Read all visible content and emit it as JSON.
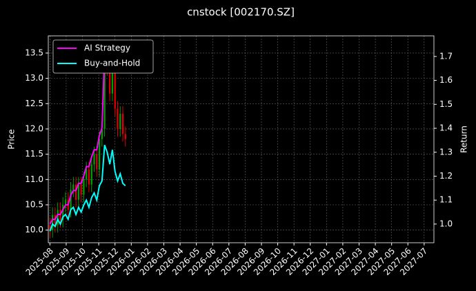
{
  "chart_data": {
    "type": "candlestick_returns",
    "title": "cnstock [002170.SZ]",
    "y_label": "Price",
    "y2_label": "Return",
    "grid": true,
    "legend_position": "upper-left",
    "up_color": "#00a000",
    "down_color": "#e00000",
    "xlim": [
      -0.1,
      23.6
    ],
    "xticks": [
      {
        "value": 0,
        "label": "2025-08"
      },
      {
        "value": 1,
        "label": "2025-09"
      },
      {
        "value": 2,
        "label": "2025-10"
      },
      {
        "value": 3,
        "label": "2025-11"
      },
      {
        "value": 4,
        "label": "2025-12"
      },
      {
        "value": 5,
        "label": "2026-01"
      },
      {
        "value": 6,
        "label": "2026-02"
      },
      {
        "value": 7,
        "label": "2026-03"
      },
      {
        "value": 8,
        "label": "2026-04"
      },
      {
        "value": 9,
        "label": "2026-05"
      },
      {
        "value": 10,
        "label": "2026-06"
      },
      {
        "value": 11,
        "label": "2026-07"
      },
      {
        "value": 12,
        "label": "2026-08"
      },
      {
        "value": 13,
        "label": "2026-09"
      },
      {
        "value": 14,
        "label": "2026-10"
      },
      {
        "value": 15,
        "label": "2026-11"
      },
      {
        "value": 16,
        "label": "2026-12"
      },
      {
        "value": 17,
        "label": "2027-01"
      },
      {
        "value": 18,
        "label": "2027-02"
      },
      {
        "value": 19,
        "label": "2027-03"
      },
      {
        "value": 20,
        "label": "2027-04"
      },
      {
        "value": 21,
        "label": "2027-05"
      },
      {
        "value": 22,
        "label": "2027-06"
      },
      {
        "value": 23,
        "label": "2027-07"
      }
    ],
    "ylim": [
      9.75,
      13.84
    ],
    "yticks": [
      {
        "value": 10,
        "label": "10.0"
      },
      10.5,
      {
        "value": 11,
        "label": "11.0"
      },
      11.5,
      {
        "value": 12,
        "label": "12.0"
      },
      12.5,
      {
        "value": 13,
        "label": "13.0"
      },
      13.5
    ],
    "y2lim": [
      0.922,
      1.786
    ],
    "y2ticks": [
      {
        "value": 1,
        "label": "1.0"
      },
      1.1,
      1.2,
      1.3,
      1.4,
      1.5,
      1.6,
      1.7
    ],
    "x": [
      0,
      0.16,
      0.32,
      0.48,
      0.64,
      0.8,
      0.96,
      1.12,
      1.28,
      1.44,
      1.6,
      1.76,
      1.92,
      2.08,
      2.24,
      2.4,
      2.56,
      2.72,
      2.88,
      3.04,
      3.2,
      3.36,
      3.52,
      3.68,
      3.84,
      4.0,
      4.16,
      4.32,
      4.48,
      4.64
    ],
    "open": [
      10.1,
      10.0,
      10.3,
      10.1,
      10.4,
      10.2,
      10.5,
      10.6,
      10.4,
      10.8,
      10.9,
      10.6,
      10.9,
      10.7,
      11.0,
      11.2,
      10.9,
      11.3,
      11.5,
      11.2,
      11.8,
      12.0,
      13.5,
      13.2,
      12.7,
      13.3,
      12.4,
      12.0,
      12.3,
      11.9
    ],
    "high": [
      10.25,
      10.45,
      10.45,
      10.55,
      10.55,
      10.65,
      10.75,
      10.75,
      10.95,
      11.05,
      11.05,
      11.05,
      11.05,
      11.15,
      11.35,
      11.35,
      11.45,
      11.65,
      11.65,
      11.95,
      12.15,
      13.65,
      13.65,
      13.35,
      13.45,
      13.45,
      12.55,
      12.45,
      12.45,
      12.05
    ],
    "low": [
      9.85,
      9.85,
      9.95,
      9.95,
      10.05,
      10.05,
      10.35,
      10.25,
      10.25,
      10.65,
      10.45,
      10.45,
      10.55,
      10.55,
      10.85,
      10.75,
      10.75,
      11.15,
      11.05,
      11.05,
      11.65,
      11.85,
      13.05,
      12.55,
      12.55,
      12.25,
      11.85,
      11.85,
      11.75,
      11.65
    ],
    "close": [
      10.0,
      10.3,
      10.1,
      10.4,
      10.2,
      10.5,
      10.6,
      10.4,
      10.8,
      10.9,
      10.6,
      10.9,
      10.7,
      11.0,
      11.2,
      10.9,
      11.3,
      11.5,
      11.2,
      11.8,
      12.0,
      13.5,
      13.2,
      12.7,
      13.3,
      12.4,
      12.0,
      12.3,
      11.9,
      11.8
    ],
    "series": [
      {
        "name": "AI Strategy",
        "color": "#ff00ff",
        "axis": "y2",
        "values": [
          1.0,
          1.02,
          1.02,
          1.04,
          1.04,
          1.06,
          1.08,
          1.08,
          1.12,
          1.14,
          1.14,
          1.17,
          1.17,
          1.2,
          1.24,
          1.24,
          1.28,
          1.31,
          1.31,
          1.37,
          1.4,
          1.72,
          1.72,
          1.72,
          1.72,
          1.72,
          1.72,
          1.72,
          1.72,
          1.72
        ]
      },
      {
        "name": "Buy-and-Hold",
        "color": "#00ffff",
        "axis": "y2",
        "values": [
          0.97,
          1.0,
          0.99,
          1.02,
          1.0,
          1.03,
          1.04,
          1.02,
          1.06,
          1.07,
          1.04,
          1.07,
          1.05,
          1.08,
          1.1,
          1.07,
          1.11,
          1.13,
          1.1,
          1.16,
          1.18,
          1.33,
          1.3,
          1.25,
          1.31,
          1.22,
          1.18,
          1.21,
          1.17,
          1.16
        ]
      }
    ]
  }
}
